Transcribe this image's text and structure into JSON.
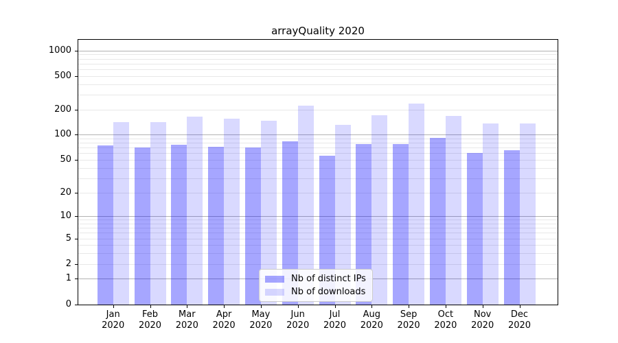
{
  "title": "arrayQuality 2020",
  "colors": {
    "bar_distinct_ips": "rgba(0,0,255,0.35)",
    "bar_downloads": "rgba(0,0,255,0.15)",
    "grid_major": "#b2b2b2",
    "grid_minor": "#e8e8e8",
    "axis_line": "#000000",
    "legend_border": "#cccccc"
  },
  "chart_data": {
    "type": "bar",
    "title": "arrayQuality 2020",
    "categories": [
      "Jan 2020",
      "Feb 2020",
      "Mar 2020",
      "Apr 2020",
      "May 2020",
      "Jun 2020",
      "Jul 2020",
      "Aug 2020",
      "Sep 2020",
      "Oct 2020",
      "Nov 2020",
      "Dec 2020"
    ],
    "series": [
      {
        "name": "Nb of distinct IPs",
        "color": "rgba(0,0,255,0.35)",
        "values": [
          75,
          70,
          76,
          72,
          70,
          83,
          56,
          77,
          77,
          91,
          60,
          65
        ]
      },
      {
        "name": "Nb of downloads",
        "color": "rgba(0,0,255,0.15)",
        "values": [
          142,
          142,
          165,
          156,
          148,
          222,
          130,
          171,
          235,
          168,
          135,
          137
        ]
      }
    ],
    "yscale": "log1p",
    "yticks": [
      1000,
      500,
      200,
      100,
      50,
      20,
      10,
      5,
      2,
      1,
      0
    ],
    "ylim": [
      0,
      1333
    ],
    "grid": true,
    "legend_position": "lower center"
  }
}
